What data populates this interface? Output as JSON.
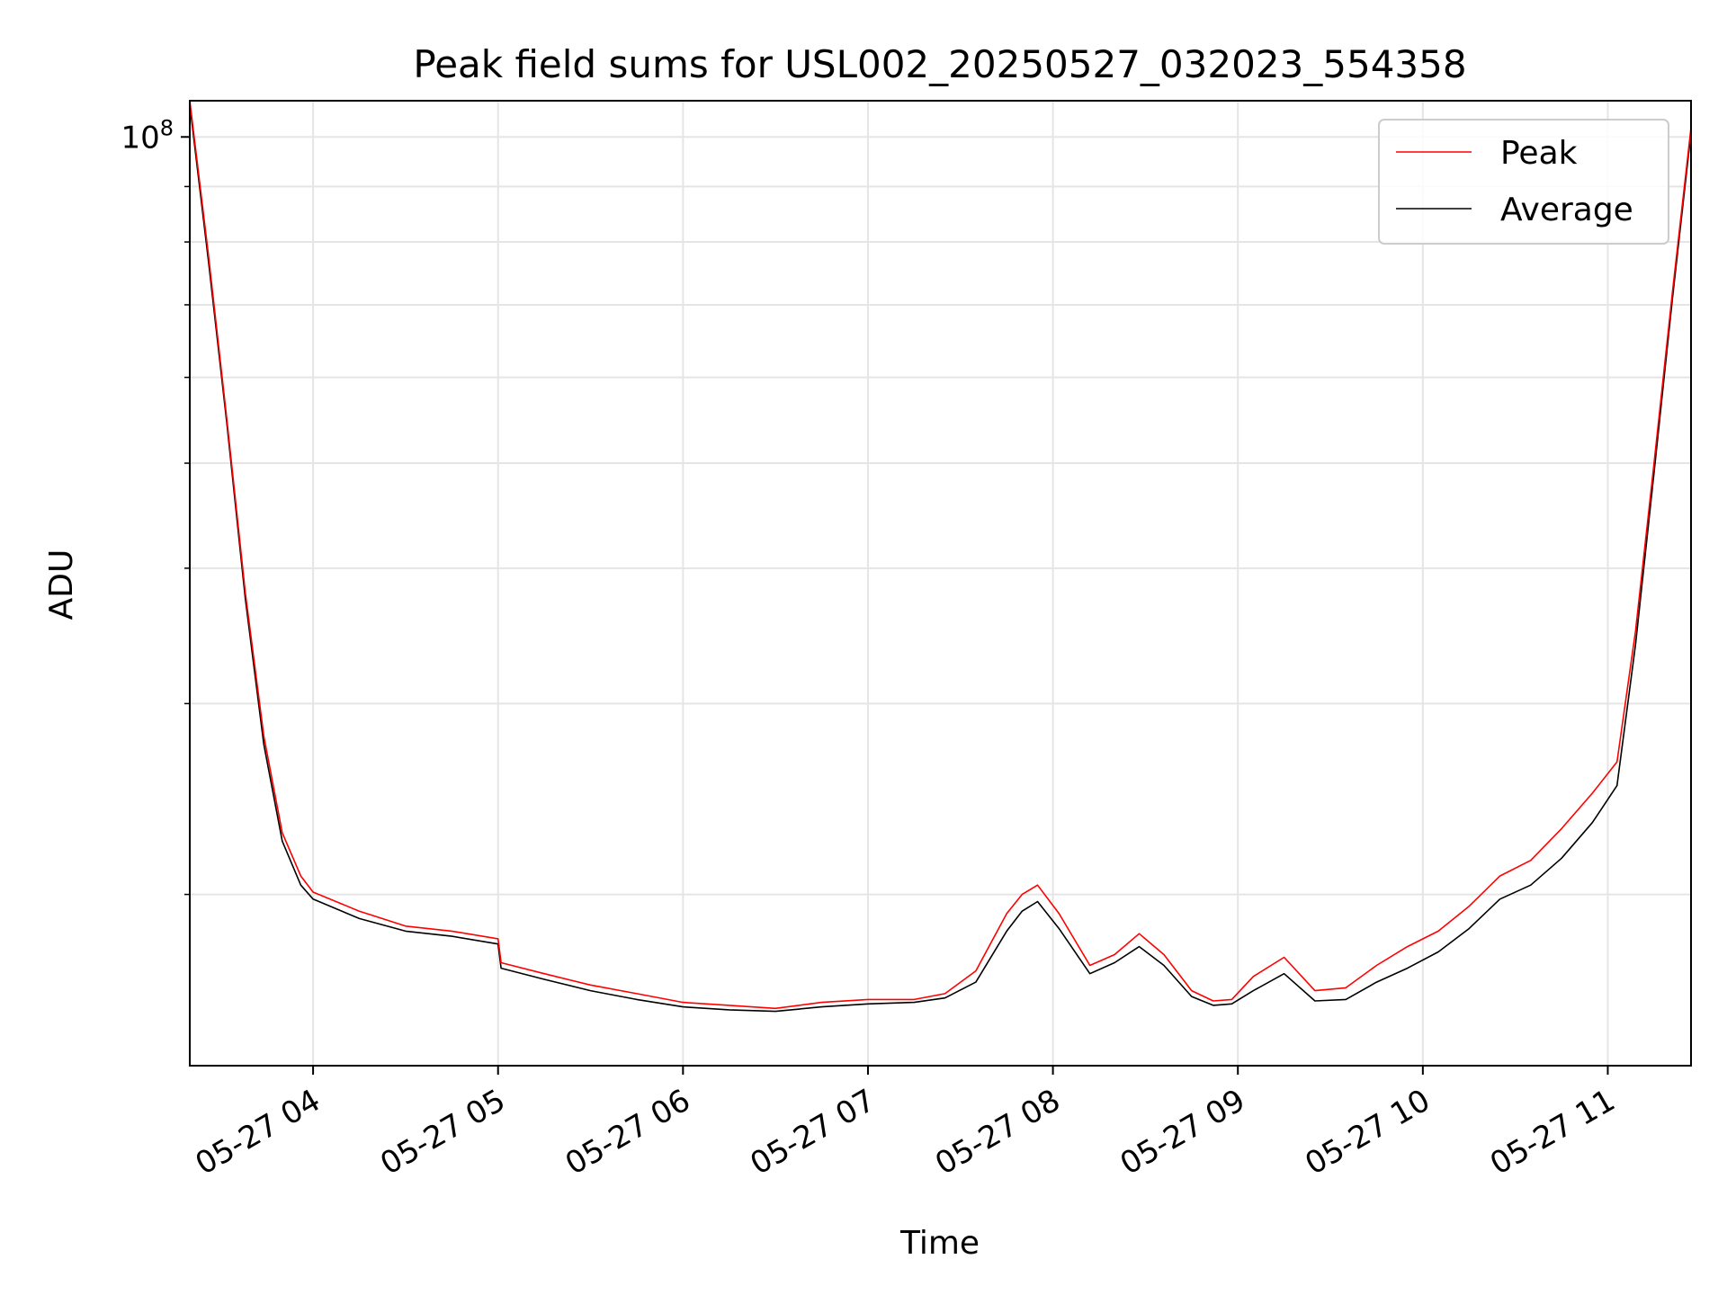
{
  "chart_data": {
    "type": "line",
    "title": "Peak field sums for USL002_20250527_032023_554358",
    "xlabel": "Time",
    "ylabel": "ADU",
    "y_scale": "log",
    "grid": true,
    "legend_placement": "top-right",
    "xlim": [
      "2025-05-27 03:20",
      "2025-05-27 11:27"
    ],
    "ylim": [
      13900000,
      108000000
    ],
    "x_ticks": [
      "05-27 04",
      "05-27 05",
      "05-27 06",
      "05-27 07",
      "05-27 08",
      "05-27 09",
      "05-27 10",
      "05-27 11"
    ],
    "y_ticks": [
      {
        "value": 100000000,
        "base": "10",
        "exponent": "8"
      }
    ],
    "colors": {
      "peak": "#ff0000",
      "average": "#000000",
      "grid": "#e5e5e5"
    },
    "series": [
      {
        "name": "Peak",
        "color": "#ff0000",
        "points": [
          [
            "2025-05-27 03:20",
            108000000
          ],
          [
            "2025-05-27 03:26",
            78000000
          ],
          [
            "2025-05-27 03:32",
            55000000
          ],
          [
            "2025-05-27 03:38",
            38000000
          ],
          [
            "2025-05-27 03:44",
            28000000
          ],
          [
            "2025-05-27 03:50",
            22800000
          ],
          [
            "2025-05-27 03:56",
            20800000
          ],
          [
            "2025-05-27 04:00",
            20100000
          ],
          [
            "2025-05-27 04:15",
            19300000
          ],
          [
            "2025-05-27 04:30",
            18700000
          ],
          [
            "2025-05-27 04:45",
            18500000
          ],
          [
            "2025-05-27 05:00",
            18200000
          ],
          [
            "2025-05-27 05:01",
            17300000
          ],
          [
            "2025-05-27 05:15",
            16900000
          ],
          [
            "2025-05-27 05:30",
            16500000
          ],
          [
            "2025-05-27 05:45",
            16200000
          ],
          [
            "2025-05-27 06:00",
            15900000
          ],
          [
            "2025-05-27 06:15",
            15800000
          ],
          [
            "2025-05-27 06:30",
            15700000
          ],
          [
            "2025-05-27 06:45",
            15900000
          ],
          [
            "2025-05-27 07:00",
            16000000
          ],
          [
            "2025-05-27 07:15",
            16000000
          ],
          [
            "2025-05-27 07:25",
            16200000
          ],
          [
            "2025-05-27 07:35",
            17000000
          ],
          [
            "2025-05-27 07:45",
            19200000
          ],
          [
            "2025-05-27 07:50",
            20000000
          ],
          [
            "2025-05-27 07:55",
            20400000
          ],
          [
            "2025-05-27 08:02",
            19200000
          ],
          [
            "2025-05-27 08:12",
            17200000
          ],
          [
            "2025-05-27 08:20",
            17600000
          ],
          [
            "2025-05-27 08:28",
            18400000
          ],
          [
            "2025-05-27 08:36",
            17600000
          ],
          [
            "2025-05-27 08:45",
            16300000
          ],
          [
            "2025-05-27 08:52",
            15950000
          ],
          [
            "2025-05-27 08:58",
            16000000
          ],
          [
            "2025-05-27 09:05",
            16800000
          ],
          [
            "2025-05-27 09:15",
            17500000
          ],
          [
            "2025-05-27 09:25",
            16300000
          ],
          [
            "2025-05-27 09:35",
            16400000
          ],
          [
            "2025-05-27 09:45",
            17200000
          ],
          [
            "2025-05-27 09:55",
            17900000
          ],
          [
            "2025-05-27 10:05",
            18500000
          ],
          [
            "2025-05-27 10:15",
            19500000
          ],
          [
            "2025-05-27 10:25",
            20800000
          ],
          [
            "2025-05-27 10:35",
            21500000
          ],
          [
            "2025-05-27 10:45",
            23000000
          ],
          [
            "2025-05-27 10:55",
            24800000
          ],
          [
            "2025-05-27 11:03",
            26500000
          ],
          [
            "2025-05-27 11:09",
            35000000
          ],
          [
            "2025-05-27 11:15",
            50000000
          ],
          [
            "2025-05-27 11:21",
            72000000
          ],
          [
            "2025-05-27 11:27",
            102000000
          ]
        ]
      },
      {
        "name": "Average",
        "color": "#000000",
        "points": [
          [
            "2025-05-27 03:20",
            107000000
          ],
          [
            "2025-05-27 03:26",
            77000000
          ],
          [
            "2025-05-27 03:32",
            54500000
          ],
          [
            "2025-05-27 03:38",
            37500000
          ],
          [
            "2025-05-27 03:44",
            27500000
          ],
          [
            "2025-05-27 03:50",
            22400000
          ],
          [
            "2025-05-27 03:56",
            20400000
          ],
          [
            "2025-05-27 04:00",
            19800000
          ],
          [
            "2025-05-27 04:15",
            19000000
          ],
          [
            "2025-05-27 04:30",
            18500000
          ],
          [
            "2025-05-27 04:45",
            18300000
          ],
          [
            "2025-05-27 05:00",
            18000000
          ],
          [
            "2025-05-27 05:01",
            17100000
          ],
          [
            "2025-05-27 05:15",
            16700000
          ],
          [
            "2025-05-27 05:30",
            16300000
          ],
          [
            "2025-05-27 05:45",
            16000000
          ],
          [
            "2025-05-27 06:00",
            15750000
          ],
          [
            "2025-05-27 06:15",
            15650000
          ],
          [
            "2025-05-27 06:30",
            15600000
          ],
          [
            "2025-05-27 06:45",
            15750000
          ],
          [
            "2025-05-27 07:00",
            15850000
          ],
          [
            "2025-05-27 07:15",
            15900000
          ],
          [
            "2025-05-27 07:25",
            16050000
          ],
          [
            "2025-05-27 07:35",
            16600000
          ],
          [
            "2025-05-27 07:45",
            18500000
          ],
          [
            "2025-05-27 07:50",
            19300000
          ],
          [
            "2025-05-27 07:55",
            19700000
          ],
          [
            "2025-05-27 08:02",
            18600000
          ],
          [
            "2025-05-27 08:12",
            16900000
          ],
          [
            "2025-05-27 08:20",
            17300000
          ],
          [
            "2025-05-27 08:28",
            17900000
          ],
          [
            "2025-05-27 08:36",
            17200000
          ],
          [
            "2025-05-27 08:45",
            16100000
          ],
          [
            "2025-05-27 08:52",
            15800000
          ],
          [
            "2025-05-27 08:58",
            15850000
          ],
          [
            "2025-05-27 09:05",
            16300000
          ],
          [
            "2025-05-27 09:15",
            16900000
          ],
          [
            "2025-05-27 09:25",
            15950000
          ],
          [
            "2025-05-27 09:35",
            16000000
          ],
          [
            "2025-05-27 09:45",
            16600000
          ],
          [
            "2025-05-27 09:55",
            17100000
          ],
          [
            "2025-05-27 10:05",
            17700000
          ],
          [
            "2025-05-27 10:15",
            18600000
          ],
          [
            "2025-05-27 10:25",
            19800000
          ],
          [
            "2025-05-27 10:35",
            20400000
          ],
          [
            "2025-05-27 10:45",
            21600000
          ],
          [
            "2025-05-27 10:55",
            23300000
          ],
          [
            "2025-05-27 11:03",
            25200000
          ],
          [
            "2025-05-27 11:09",
            34000000
          ],
          [
            "2025-05-27 11:15",
            49000000
          ],
          [
            "2025-05-27 11:21",
            71000000
          ],
          [
            "2025-05-27 11:27",
            101000000
          ]
        ]
      }
    ]
  }
}
